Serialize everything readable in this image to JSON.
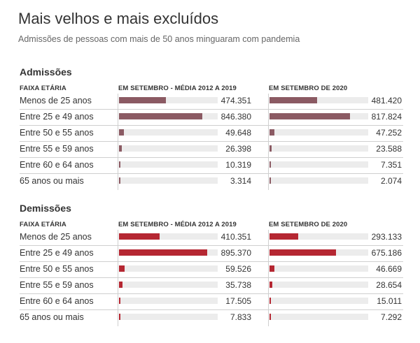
{
  "title": "Mais velhos e mais excluídos",
  "subtitle": "Admissões de pessoas com mais de 50 anos minguaram com pandemia",
  "colors": {
    "admissoes": "#8b5a63",
    "demissoes": "#b52732",
    "track": "#ececec"
  },
  "chart_data": [
    {
      "type": "bar",
      "title": "Admissões",
      "category_header": "FAIXA ETÁRIA",
      "categories": [
        "Menos de 25 anos",
        "Entre 25 e 49 anos",
        "Entre 50 e 55 anos",
        "Entre 55 e 59 anos",
        "Entre 60 e 64 anos",
        "65 anos ou mais"
      ],
      "series": [
        {
          "name": "EM SETEMBRO - MÉDIA 2012 A 2019",
          "values": [
            474351,
            846380,
            49648,
            26398,
            10319,
            3314
          ],
          "labels": [
            "474.351",
            "846.380",
            "49.648",
            "26.398",
            "10.319",
            "3.314"
          ]
        },
        {
          "name": "EM SETEMBRO DE 2020",
          "values": [
            481420,
            817824,
            47252,
            23588,
            7351,
            2074
          ],
          "labels": [
            "481.420",
            "817.824",
            "47.252",
            "23.588",
            "7.351",
            "2.074"
          ]
        }
      ]
    },
    {
      "type": "bar",
      "title": "Demissões",
      "category_header": "FAIXA ETÁRIA",
      "categories": [
        "Menos de 25 anos",
        "Entre 25 e 49 anos",
        "Entre 50 e 55 anos",
        "Entre 55 e 59 anos",
        "Entre 60 e 64 anos",
        "65 anos ou mais"
      ],
      "series": [
        {
          "name": "EM SETEMBRO - MÉDIA 2012 A 2019",
          "values": [
            410351,
            895370,
            59526,
            35738,
            17505,
            7833
          ],
          "labels": [
            "410.351",
            "895.370",
            "59.526",
            "35.738",
            "17.505",
            "7.833"
          ]
        },
        {
          "name": "EM SETEMBRO DE 2020",
          "values": [
            293133,
            675186,
            46669,
            28654,
            15011,
            7292
          ],
          "labels": [
            "293.133",
            "675.186",
            "46.669",
            "28.654",
            "15.011",
            "7.292"
          ]
        }
      ]
    }
  ]
}
